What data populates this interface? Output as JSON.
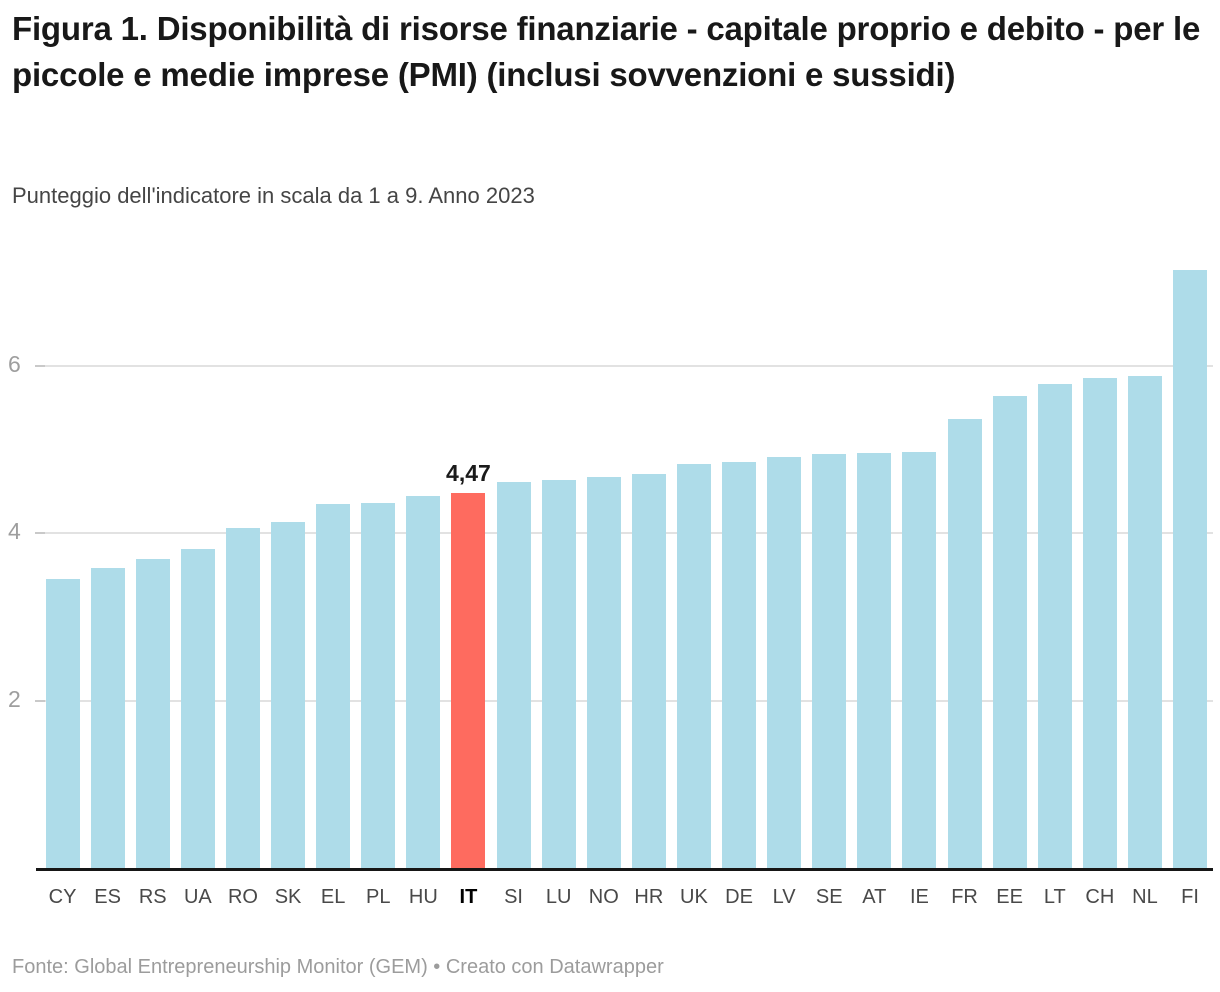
{
  "chart_data": {
    "type": "bar",
    "title": "Figura 1. Disponibilità di risorse finanziarie - capitale proprio e debito - per le piccole e medie imprese (PMI) (inclusi sovvenzioni e sussidi)",
    "subtitle": "Punteggio dell'indicatore in scala da 1 a 9. Anno 2023",
    "source": "Fonte: Global Entrepreneurship Monitor (GEM) • Creato con Datawrapper",
    "categories": [
      "CY",
      "ES",
      "RS",
      "UA",
      "RO",
      "SK",
      "EL",
      "PL",
      "HU",
      "IT",
      "SI",
      "LU",
      "NO",
      "HR",
      "UK",
      "DE",
      "LV",
      "SE",
      "AT",
      "IE",
      "FR",
      "EE",
      "LT",
      "CH",
      "NL",
      "FI"
    ],
    "values": [
      3.44,
      3.57,
      3.68,
      3.8,
      4.05,
      4.12,
      4.34,
      4.35,
      4.43,
      4.47,
      4.6,
      4.62,
      4.66,
      4.7,
      4.82,
      4.84,
      4.9,
      4.93,
      4.95,
      4.96,
      5.35,
      5.62,
      5.77,
      5.84,
      5.86,
      7.13
    ],
    "highlight_category": "IT",
    "highlight_index": 9,
    "highlight_value_label": "4,47",
    "yticks": [
      2,
      4,
      6
    ],
    "ylim": [
      0,
      7.4
    ],
    "grid": true,
    "legend": null,
    "xlabel": "",
    "ylabel": "",
    "colors": {
      "bar": "#aedce9",
      "highlight_bar": "#fe6b5f",
      "gridline": "#e2e2e2",
      "axis_line": "#161616",
      "ytick_text": "#9e9e9e",
      "xtick_text": "#494949"
    }
  }
}
